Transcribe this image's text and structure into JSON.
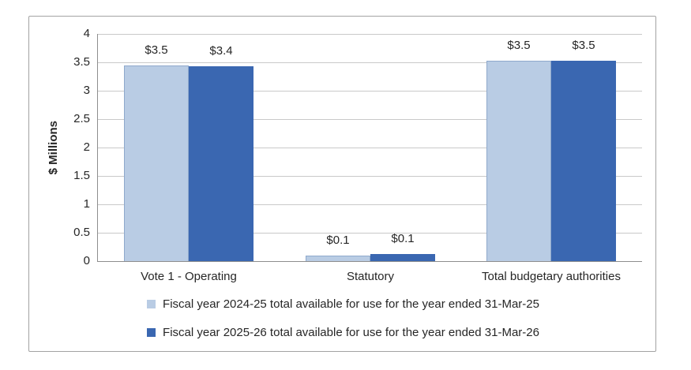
{
  "chart_data": {
    "type": "bar",
    "title": "",
    "xlabel": "",
    "ylabel": "$ Millions",
    "ylim": [
      0,
      4
    ],
    "ytick_step": 0.5,
    "ytick_labels": [
      "4",
      "3.5",
      "3",
      "2.5",
      "2",
      "1.5",
      "1",
      "0.5",
      "0"
    ],
    "grid": true,
    "legend_position": "bottom",
    "categories": [
      "Vote 1 - Operating",
      "Statutory",
      "Total budgetary authorities"
    ],
    "series": [
      {
        "name": "Fiscal year 2024-25 total available for use for the year ended 31-Mar-25",
        "color": "#b9cce4",
        "border_color": "#8fa9cc",
        "values": [
          3.45,
          0.1,
          3.53
        ],
        "data_labels": [
          "$3.5",
          "$0.1",
          "$3.5"
        ]
      },
      {
        "name": "Fiscal year 2025-26 total available for use for the year ended 31-Mar-26",
        "color": "#3a67b1",
        "border_color": "#3a67b1",
        "values": [
          3.43,
          0.13,
          3.53
        ],
        "data_labels": [
          "$3.4",
          "$0.1",
          "$3.5"
        ]
      }
    ]
  },
  "colors": {
    "gridline": "#c9c9c9",
    "axis": "#8e8e8e",
    "frame_border": "#a3a3a3",
    "text": "#262626",
    "background": "#ffffff"
  }
}
